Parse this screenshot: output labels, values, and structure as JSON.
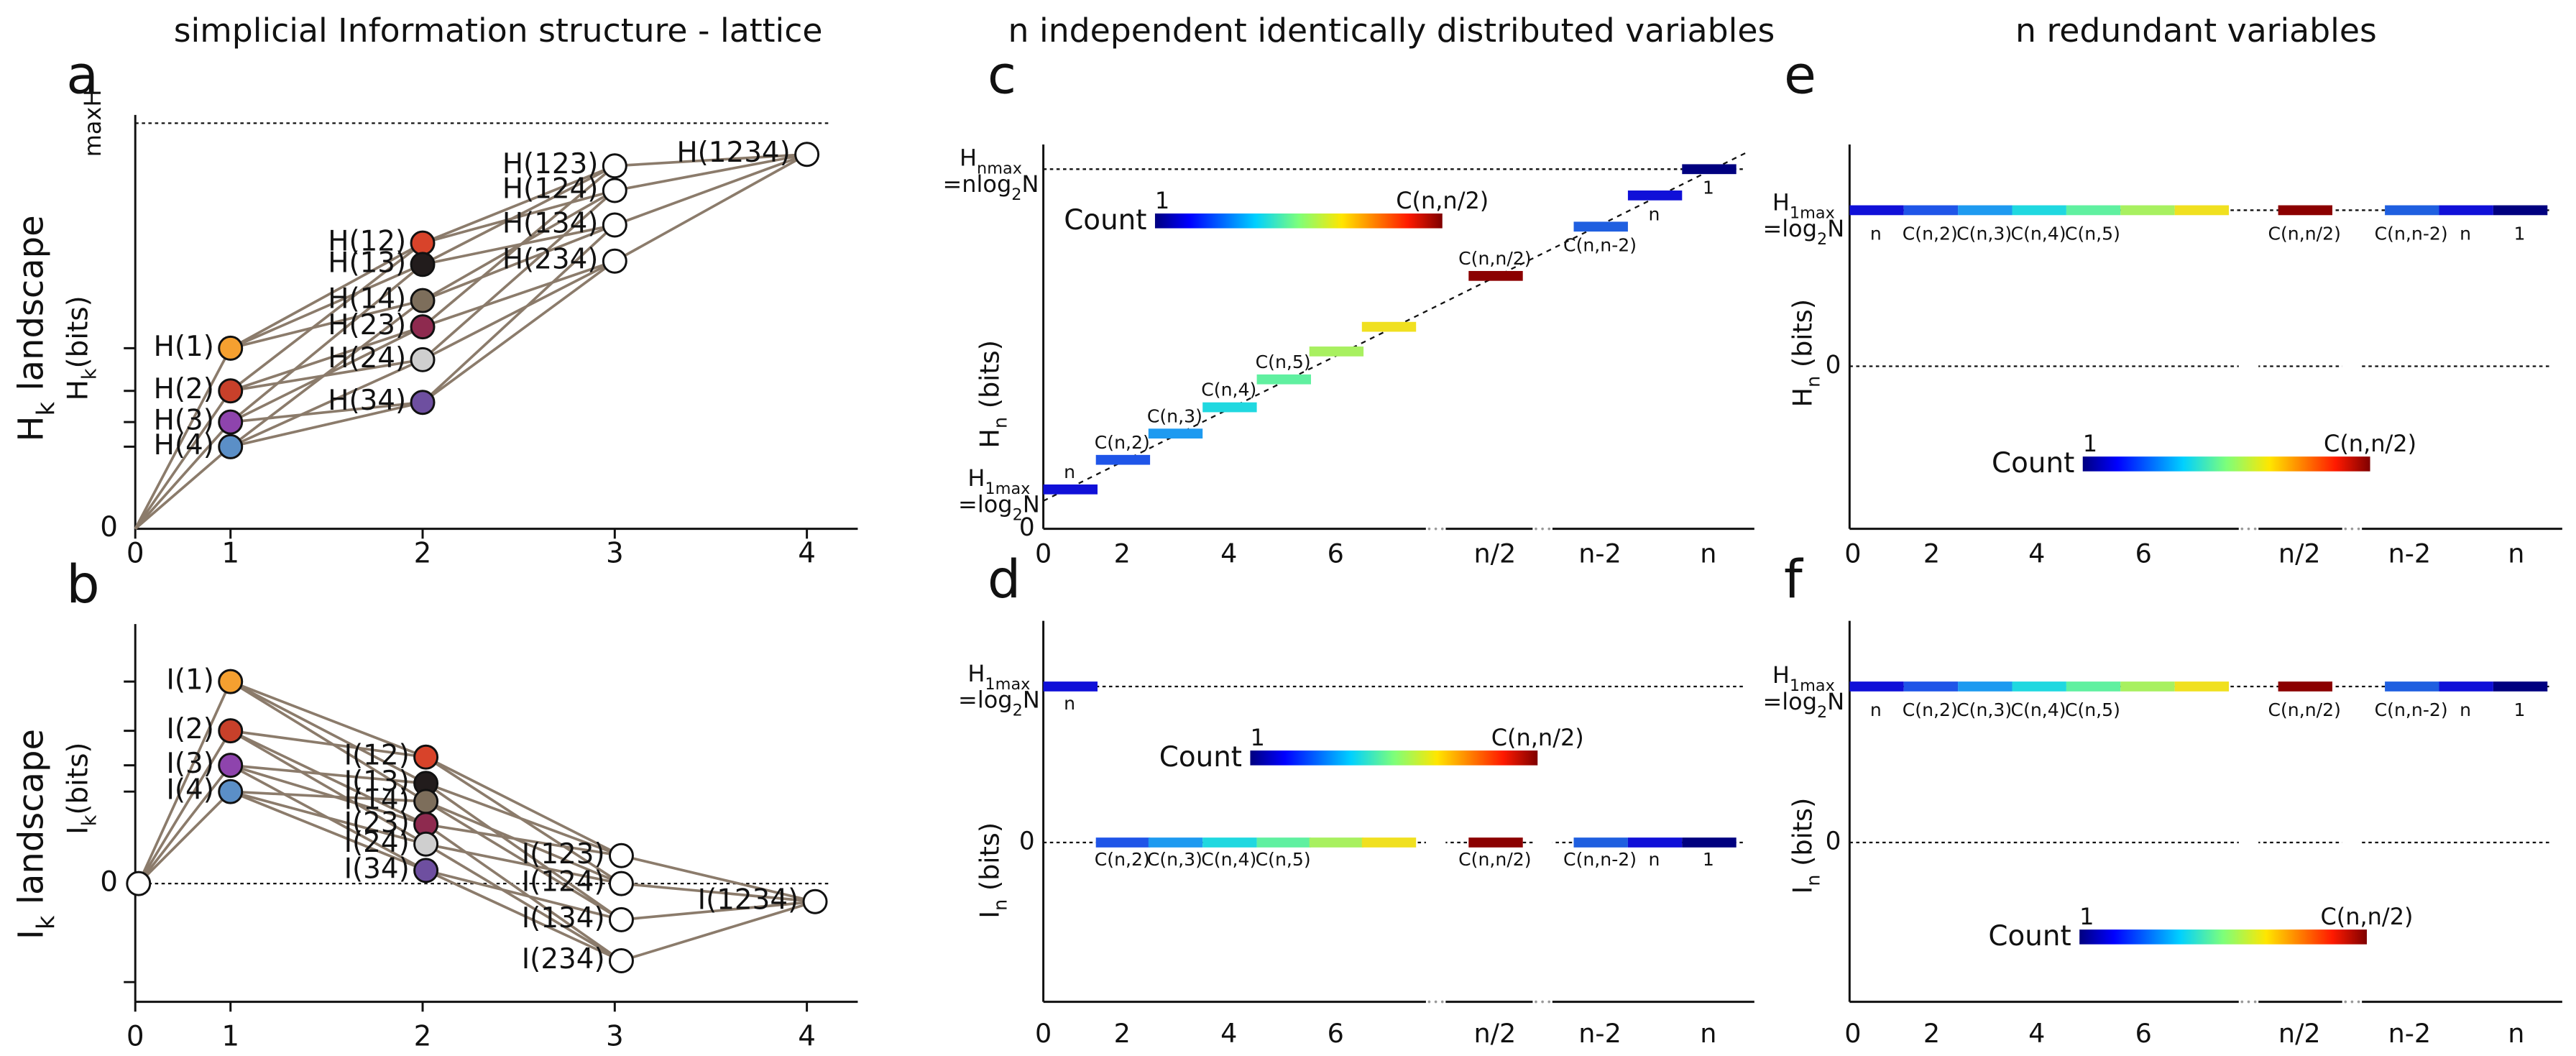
{
  "titles": [
    "simplicial Information structure - lattice",
    "n independent identically distributed variables",
    "n redundant variables"
  ],
  "panels": {
    "a": {
      "letter": "a",
      "ylabel": [
        "H",
        "k",
        " landscape"
      ],
      "unit": [
        "H",
        "k",
        "(bits)"
      ],
      "xticks": [
        "0",
        "1",
        "2",
        "3",
        "4"
      ],
      "yzero": "0",
      "ymax": "maxH",
      "nodes": [
        "H(1)",
        "H(2)",
        "H(3)",
        "H(4)",
        "H(12)",
        "H(13)",
        "H(14)",
        "H(23)",
        "H(24)",
        "H(34)",
        "H(123)",
        "H(124)",
        "H(134)",
        "H(234)",
        "H(1234)"
      ]
    },
    "b": {
      "letter": "b",
      "ylabel": [
        "I",
        "k",
        " landscape"
      ],
      "unit": [
        "I",
        "k",
        "(bits)"
      ],
      "xticks": [
        "0",
        "1",
        "2",
        "3",
        "4"
      ],
      "yzero": "0",
      "nodes": [
        "I(1)",
        "I(2)",
        "I(3)",
        "I(4)",
        "I(12)",
        "I(13)",
        "I(14)",
        "I(23)",
        "I(24)",
        "I(34)",
        "I(123)",
        "I(124)",
        "I(134)",
        "I(234)",
        "I(1234)"
      ]
    },
    "c": {
      "letter": "c",
      "ylabel": [
        "H",
        "n",
        " (bits)"
      ],
      "xticks": [
        "0",
        "2",
        "4",
        "6",
        "n/2",
        "n-2",
        "n"
      ],
      "yzero": "0",
      "low": {
        "line1": [
          "H",
          "1max"
        ],
        "line2": [
          "=log",
          "2",
          "N"
        ]
      },
      "high": {
        "line1": [
          "H",
          "nmax"
        ],
        "line2": [
          "=nlog",
          "2",
          "N"
        ]
      },
      "bars": [
        "n",
        "C(n,2)",
        "C(n,3)",
        "C(n,4)",
        "C(n,5)",
        "C(n,n/2)",
        "C(n,n-2)",
        "n",
        "1"
      ],
      "colorbar": {
        "label": "Count",
        "min": "1",
        "max": "C(n,n/2)"
      }
    },
    "d": {
      "letter": "d",
      "ylabel": [
        "I",
        "n",
        " (bits)"
      ],
      "xticks": [
        "0",
        "2",
        "4",
        "6",
        "n/2",
        "n-2",
        "n"
      ],
      "yzero": "0",
      "low": {
        "line1": [
          "H",
          "1max"
        ],
        "line2": [
          "=log",
          "2",
          "N"
        ]
      },
      "bars": [
        "n",
        "C(n,2)",
        "C(n,3)",
        "C(n,4)",
        "C(n,5)",
        "C(n,n/2)",
        "C(n,n-2)",
        "n",
        "1"
      ],
      "colorbar": {
        "label": "Count",
        "min": "1",
        "max": "C(n,n/2)"
      }
    },
    "e": {
      "letter": "e",
      "ylabel": [
        "H",
        "n",
        " (bits)"
      ],
      "xticks": [
        "0",
        "2",
        "4",
        "6",
        "n/2",
        "n-2",
        "n"
      ],
      "yzero": "0",
      "low": {
        "line1": [
          "H",
          "1max"
        ],
        "line2": [
          "=log",
          "2",
          "N"
        ]
      },
      "bars": [
        "n",
        "C(n,2)",
        "C(n,3)",
        "C(n,4)",
        "C(n,5)",
        "C(n,n/2)",
        "C(n,n-2)",
        "n",
        "1"
      ],
      "colorbar": {
        "label": "Count",
        "min": "1",
        "max": "C(n,n/2)"
      }
    },
    "f": {
      "letter": "f",
      "ylabel": [
        "I",
        "n",
        " (bits)"
      ],
      "xticks": [
        "0",
        "2",
        "4",
        "6",
        "n/2",
        "n-2",
        "n"
      ],
      "yzero": "0",
      "low": {
        "line1": [
          "H",
          "1max"
        ],
        "line2": [
          "=log",
          "2",
          "N"
        ]
      },
      "bars": [
        "n",
        "C(n,2)",
        "C(n,3)",
        "C(n,4)",
        "C(n,5)",
        "C(n,n/2)",
        "C(n,n-2)",
        "n",
        "1"
      ],
      "colorbar": {
        "label": "Count",
        "min": "1",
        "max": "C(n,n/2)"
      }
    }
  }
}
